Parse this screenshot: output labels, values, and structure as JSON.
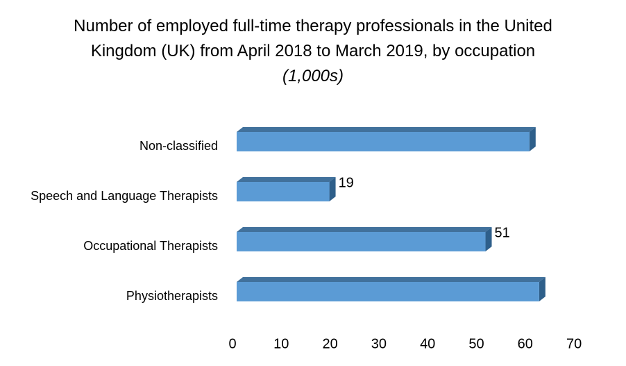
{
  "chart_data": {
    "type": "bar3d_horizontal",
    "title": "Number of employed full-time therapy professionals in the United Kingdom (UK) from April 2018 to March 2019, by occupation",
    "unit": "(1,000s)",
    "categories": [
      "Non-classified",
      "Speech and Language Therapists",
      "Occupational Therapists",
      "Physiotherapists"
    ],
    "values": [
      60,
      19,
      51,
      62
    ],
    "show_value_labels": [
      false,
      true,
      true,
      false
    ],
    "color": "#5b9bd5",
    "xlim": [
      0,
      70
    ],
    "xticks": [
      0,
      10,
      20,
      30,
      40,
      50,
      60,
      70
    ],
    "grid": false
  }
}
